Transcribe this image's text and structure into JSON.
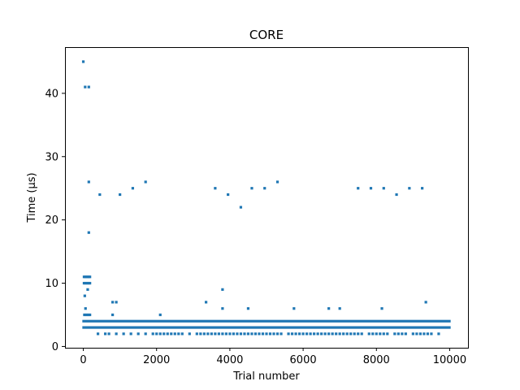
{
  "chart_data": {
    "type": "scatter",
    "title": "CORE",
    "xlabel": "Trial number",
    "ylabel": "Time (μs)",
    "xlim": [
      -500,
      10500
    ],
    "ylim": [
      -0.2,
      47.3
    ],
    "xticks": [
      0,
      2000,
      4000,
      6000,
      8000,
      10000
    ],
    "yticks": [
      0,
      10,
      20,
      30,
      40
    ],
    "grid": false,
    "legend": "none",
    "marker_color": "#1f77b4",
    "dense_bands": [
      {
        "y": 3,
        "x_range": [
          0,
          10000
        ],
        "note": "nearly continuous band of points"
      },
      {
        "y": 4,
        "x_range": [
          0,
          10000
        ],
        "note": "nearly continuous band of points"
      }
    ],
    "sparse_band": {
      "y": 2,
      "x": [
        400,
        600,
        700,
        900,
        1100,
        1300,
        1500,
        1700,
        1900,
        2000,
        2100,
        2200,
        2300,
        2400,
        2500,
        2600,
        2700,
        2900,
        3100,
        3200,
        3300,
        3400,
        3500,
        3600,
        3700,
        3800,
        3900,
        4000,
        4100,
        4200,
        4300,
        4400,
        4500,
        4600,
        4700,
        4800,
        4900,
        5000,
        5100,
        5200,
        5300,
        5400,
        5600,
        5700,
        5800,
        5900,
        6000,
        6100,
        6200,
        6300,
        6400,
        6500,
        6600,
        6700,
        6800,
        6900,
        7000,
        7100,
        7200,
        7300,
        7400,
        7500,
        7600,
        7800,
        7900,
        8000,
        8100,
        8200,
        8300,
        8500,
        8600,
        8700,
        8800,
        9000,
        9100,
        9200,
        9300,
        9400,
        9500,
        9700
      ]
    },
    "points": [
      {
        "x": 0,
        "y": 45
      },
      {
        "x": 50,
        "y": 41
      },
      {
        "x": 150,
        "y": 41
      },
      {
        "x": 150,
        "y": 26
      },
      {
        "x": 150,
        "y": 18
      },
      {
        "x": 450,
        "y": 24
      },
      {
        "x": 1000,
        "y": 24
      },
      {
        "x": 1350,
        "y": 25
      },
      {
        "x": 1700,
        "y": 26
      },
      {
        "x": 3600,
        "y": 25
      },
      {
        "x": 3950,
        "y": 24
      },
      {
        "x": 4300,
        "y": 22
      },
      {
        "x": 4600,
        "y": 25
      },
      {
        "x": 4950,
        "y": 25
      },
      {
        "x": 5300,
        "y": 26
      },
      {
        "x": 7500,
        "y": 25
      },
      {
        "x": 7850,
        "y": 25
      },
      {
        "x": 8200,
        "y": 25
      },
      {
        "x": 8550,
        "y": 24
      },
      {
        "x": 8900,
        "y": 25
      },
      {
        "x": 9250,
        "y": 25
      },
      {
        "x": 20,
        "y": 11
      },
      {
        "x": 60,
        "y": 11
      },
      {
        "x": 100,
        "y": 11
      },
      {
        "x": 140,
        "y": 11
      },
      {
        "x": 180,
        "y": 11
      },
      {
        "x": 20,
        "y": 10
      },
      {
        "x": 60,
        "y": 10
      },
      {
        "x": 100,
        "y": 10
      },
      {
        "x": 140,
        "y": 10
      },
      {
        "x": 180,
        "y": 10
      },
      {
        "x": 120,
        "y": 9
      },
      {
        "x": 40,
        "y": 8
      },
      {
        "x": 60,
        "y": 6
      },
      {
        "x": 30,
        "y": 5
      },
      {
        "x": 80,
        "y": 5
      },
      {
        "x": 130,
        "y": 5
      },
      {
        "x": 180,
        "y": 5
      },
      {
        "x": 800,
        "y": 7
      },
      {
        "x": 900,
        "y": 7
      },
      {
        "x": 800,
        "y": 5
      },
      {
        "x": 2100,
        "y": 5
      },
      {
        "x": 3350,
        "y": 7
      },
      {
        "x": 3800,
        "y": 9
      },
      {
        "x": 3800,
        "y": 6
      },
      {
        "x": 4500,
        "y": 6
      },
      {
        "x": 5750,
        "y": 6
      },
      {
        "x": 6700,
        "y": 6
      },
      {
        "x": 7000,
        "y": 6
      },
      {
        "x": 8150,
        "y": 6
      },
      {
        "x": 9350,
        "y": 7
      }
    ]
  }
}
